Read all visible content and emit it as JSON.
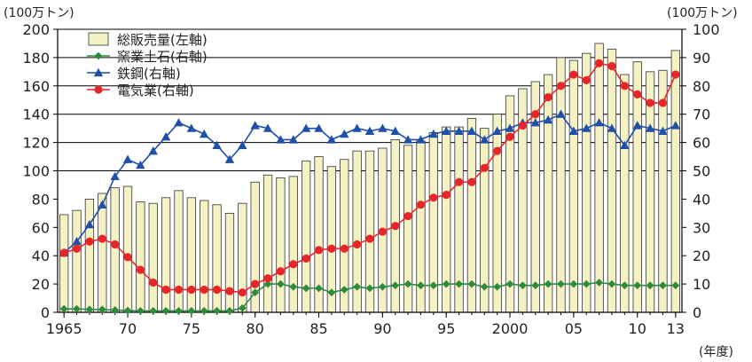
{
  "chart_data": {
    "type": "bar",
    "left_unit": "(100万トン)",
    "right_unit": "(100万トン)",
    "x_unit": "(年度)",
    "ylim_left": [
      0,
      200
    ],
    "ylim_right": [
      0,
      100
    ],
    "left_ticks": [
      "0",
      "20",
      "40",
      "60",
      "80",
      "100",
      "120",
      "140",
      "160",
      "180",
      "200"
    ],
    "right_ticks": [
      "0",
      "10",
      "20",
      "30",
      "40",
      "50",
      "60",
      "70",
      "80",
      "90",
      "100"
    ],
    "x_ticks": [
      {
        "year": 1965,
        "label": "1965"
      },
      {
        "year": 1970,
        "label": "70"
      },
      {
        "year": 1975,
        "label": "75"
      },
      {
        "year": 1980,
        "label": "80"
      },
      {
        "year": 1985,
        "label": "85"
      },
      {
        "year": 1990,
        "label": "90"
      },
      {
        "year": 1995,
        "label": "95"
      },
      {
        "year": 2000,
        "label": "2000"
      },
      {
        "year": 2005,
        "label": "05"
      },
      {
        "year": 2010,
        "label": "10"
      },
      {
        "year": 2013,
        "label": "13"
      }
    ],
    "grid": "horizontal, upper half",
    "legend_position": "top-left",
    "years": [
      1965,
      1966,
      1967,
      1968,
      1969,
      1970,
      1971,
      1972,
      1973,
      1974,
      1975,
      1976,
      1977,
      1978,
      1979,
      1980,
      1981,
      1982,
      1983,
      1984,
      1985,
      1986,
      1987,
      1988,
      1989,
      1990,
      1991,
      1992,
      1993,
      1994,
      1995,
      1996,
      1997,
      1998,
      1999,
      2000,
      2001,
      2002,
      2003,
      2004,
      2005,
      2006,
      2007,
      2008,
      2009,
      2010,
      2011,
      2012,
      2013
    ],
    "series": [
      {
        "name": "総販売量(左軸)",
        "kind": "bar",
        "axis": "left",
        "color": "#f4f1c4",
        "values": [
          69,
          72,
          80,
          84,
          88,
          89,
          78,
          77,
          81,
          86,
          81,
          79,
          76,
          70,
          77,
          92,
          97,
          95,
          96,
          107,
          110,
          103,
          108,
          114,
          114,
          116,
          122,
          118,
          121,
          127,
          131,
          131,
          137,
          130,
          140,
          153,
          158,
          163,
          168,
          180,
          178,
          183,
          190,
          186,
          168,
          177,
          170,
          171,
          185
        ]
      },
      {
        "name": "窯業土石(右軸)",
        "kind": "line",
        "marker": "diamond",
        "axis": "right",
        "color": "#2e8b3e",
        "values": [
          1.2,
          1.2,
          1.0,
          1.0,
          0.8,
          0.6,
          0.5,
          0.5,
          0.5,
          0.5,
          0.5,
          0.5,
          0.5,
          0.5,
          1.5,
          7.0,
          10.0,
          10.0,
          9.0,
          8.5,
          8.5,
          7.0,
          8.0,
          9.0,
          8.5,
          9.0,
          9.5,
          10.0,
          9.5,
          9.5,
          10.0,
          10.0,
          10.0,
          9.0,
          9.0,
          10.0,
          9.5,
          9.5,
          10.0,
          10.0,
          10.0,
          10.0,
          10.5,
          10.0,
          9.5,
          9.5,
          9.5,
          9.5,
          9.5
        ]
      },
      {
        "name": "鉄鋼(右軸)",
        "kind": "line",
        "marker": "triangle",
        "axis": "right",
        "color": "#1f4fa8",
        "values": [
          21,
          25,
          31,
          38,
          48,
          54,
          52,
          57,
          62,
          67,
          65,
          63,
          59,
          54,
          59,
          66,
          65,
          61,
          61,
          65,
          65,
          61,
          63,
          65,
          64,
          65,
          64,
          61,
          61,
          63,
          64,
          64,
          64,
          61,
          64,
          65,
          67,
          67,
          68,
          70,
          64,
          65,
          67,
          65,
          59,
          66,
          65,
          64,
          66
        ]
      },
      {
        "name": "電気業(右軸)",
        "kind": "line",
        "marker": "circle",
        "axis": "right",
        "color": "#e8262a",
        "values": [
          21,
          22.5,
          25,
          26,
          24,
          19.5,
          15,
          10.5,
          8,
          8,
          8,
          8,
          8,
          7.5,
          7,
          10,
          12,
          14.5,
          17,
          19,
          22,
          22.5,
          22.5,
          24,
          26,
          28.5,
          30.5,
          34,
          38,
          40.5,
          41.5,
          46,
          46,
          51,
          57,
          62,
          66,
          70,
          76,
          80,
          84,
          82,
          88,
          87,
          80,
          77,
          74,
          74,
          84
        ]
      }
    ]
  }
}
